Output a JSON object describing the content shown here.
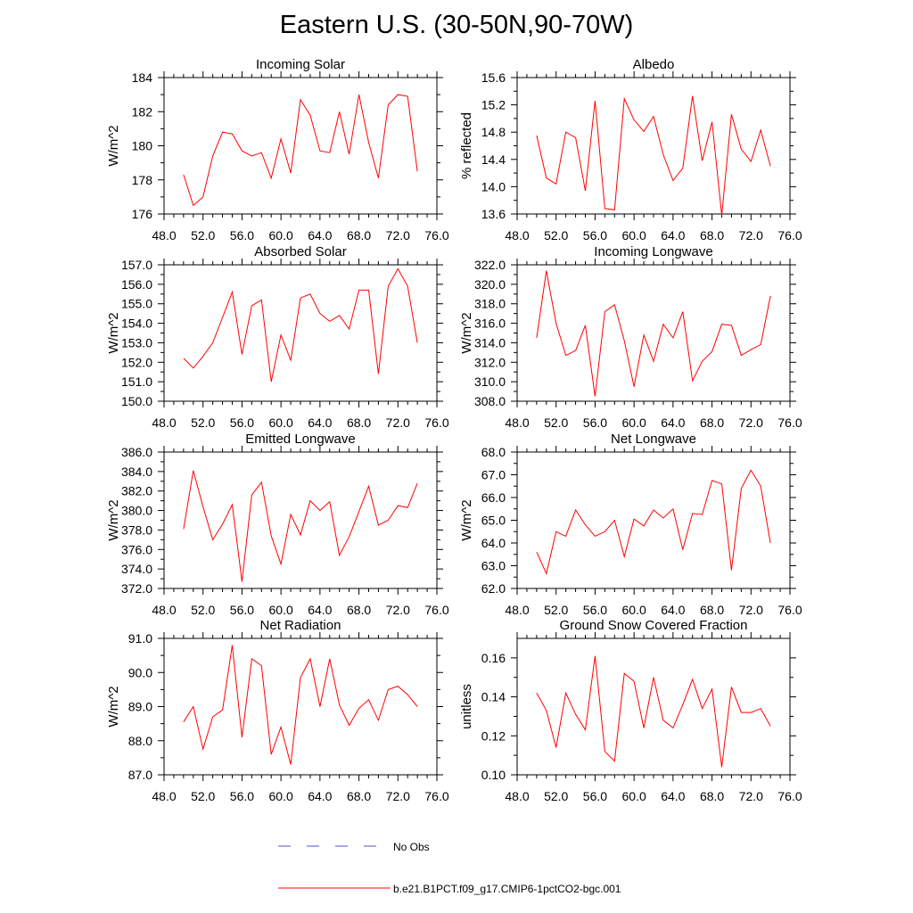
{
  "figure_title": "Eastern U.S. (30-50N,90-70W)",
  "legend": {
    "items": [
      {
        "label": "No Obs",
        "color": "#5555cc",
        "style": "dashed"
      },
      {
        "label": "b.e21.B1PCT.f09_g17.CMIP6-1pctCO2-bgc.001",
        "color": "#ff0000",
        "style": "solid"
      }
    ]
  },
  "chart_data": [
    {
      "type": "line",
      "title": "Incoming Solar",
      "xlabel": "",
      "ylabel": "W/m^2",
      "xlim": [
        48,
        76
      ],
      "ylim": [
        176,
        184
      ],
      "xticks": [
        "48.0",
        "52.0",
        "56.0",
        "60.0",
        "64.0",
        "68.0",
        "72.0",
        "76.0"
      ],
      "yticks": [
        "176",
        "178",
        "180",
        "182",
        "184"
      ],
      "x": [
        50,
        51,
        52,
        53,
        54,
        55,
        56,
        57,
        58,
        59,
        60,
        61,
        62,
        63,
        64,
        65,
        66,
        67,
        68,
        69,
        70,
        71,
        72,
        73,
        74
      ],
      "series": [
        {
          "color": "#ff0000",
          "values": [
            178.3,
            176.5,
            177.0,
            179.4,
            180.8,
            180.7,
            179.7,
            179.4,
            179.6,
            178.1,
            180.4,
            178.4,
            182.7,
            181.8,
            179.7,
            179.6,
            182.0,
            179.5,
            183.0,
            180.2,
            178.1,
            182.4,
            183.0,
            182.9,
            178.5
          ]
        }
      ]
    },
    {
      "type": "line",
      "title": "Albedo",
      "xlabel": "",
      "ylabel": "% reflected",
      "xlim": [
        48,
        76
      ],
      "ylim": [
        13.6,
        15.6
      ],
      "xticks": [
        "48.0",
        "52.0",
        "56.0",
        "60.0",
        "64.0",
        "68.0",
        "72.0",
        "76.0"
      ],
      "yticks": [
        "13.6",
        "14.0",
        "14.4",
        "14.8",
        "15.2",
        "15.6"
      ],
      "x": [
        50,
        51,
        52,
        53,
        54,
        55,
        56,
        57,
        58,
        59,
        60,
        61,
        62,
        63,
        64,
        65,
        66,
        67,
        68,
        69,
        70,
        71,
        72,
        73,
        74
      ],
      "series": [
        {
          "color": "#ff0000",
          "values": [
            14.75,
            14.13,
            14.04,
            14.8,
            14.72,
            13.94,
            15.26,
            13.68,
            13.66,
            15.29,
            14.98,
            14.81,
            15.03,
            14.47,
            14.09,
            14.27,
            15.33,
            14.38,
            14.95,
            13.58,
            15.06,
            14.55,
            14.37,
            14.83,
            14.3
          ]
        }
      ]
    },
    {
      "type": "line",
      "title": "Absorbed Solar",
      "xlabel": "",
      "ylabel": "W/m^2",
      "xlim": [
        48,
        76
      ],
      "ylim": [
        150,
        157
      ],
      "xticks": [
        "48.0",
        "52.0",
        "56.0",
        "60.0",
        "64.0",
        "68.0",
        "72.0",
        "76.0"
      ],
      "yticks": [
        "150.0",
        "151.0",
        "152.0",
        "153.0",
        "154.0",
        "155.0",
        "156.0",
        "157.0"
      ],
      "x": [
        50,
        51,
        52,
        53,
        54,
        55,
        56,
        57,
        58,
        59,
        60,
        61,
        62,
        63,
        64,
        65,
        66,
        67,
        68,
        69,
        70,
        71,
        72,
        73,
        74
      ],
      "series": [
        {
          "color": "#ff0000",
          "values": [
            152.2,
            151.7,
            152.3,
            153.0,
            154.3,
            155.6,
            152.4,
            154.9,
            155.2,
            151.0,
            153.4,
            152.1,
            155.3,
            155.5,
            154.5,
            154.1,
            154.4,
            153.7,
            155.7,
            155.7,
            151.4,
            155.9,
            156.8,
            155.9,
            153.0
          ]
        }
      ]
    },
    {
      "type": "line",
      "title": "Incoming Longwave",
      "xlabel": "",
      "ylabel": "W/m^2",
      "xlim": [
        48,
        76
      ],
      "ylim": [
        308,
        322
      ],
      "xticks": [
        "48.0",
        "52.0",
        "56.0",
        "60.0",
        "64.0",
        "68.0",
        "72.0",
        "76.0"
      ],
      "yticks": [
        "308.0",
        "310.0",
        "312.0",
        "314.0",
        "316.0",
        "318.0",
        "320.0",
        "322.0"
      ],
      "x": [
        50,
        51,
        52,
        53,
        54,
        55,
        56,
        57,
        58,
        59,
        60,
        61,
        62,
        63,
        64,
        65,
        66,
        67,
        68,
        69,
        70,
        71,
        72,
        73,
        74
      ],
      "series": [
        {
          "color": "#ff0000",
          "values": [
            314.5,
            321.4,
            316.0,
            312.7,
            313.2,
            315.8,
            308.5,
            317.2,
            317.9,
            314.2,
            309.5,
            314.8,
            312.1,
            315.9,
            314.5,
            317.2,
            310.1,
            312.1,
            313.1,
            315.9,
            315.8,
            312.7,
            313.3,
            313.8,
            318.8
          ]
        }
      ]
    },
    {
      "type": "line",
      "title": "Emitted Longwave",
      "xlabel": "",
      "ylabel": "W/m^2",
      "xlim": [
        48,
        76
      ],
      "ylim": [
        372,
        386
      ],
      "xticks": [
        "48.0",
        "52.0",
        "56.0",
        "60.0",
        "64.0",
        "68.0",
        "72.0",
        "76.0"
      ],
      "yticks": [
        "372.0",
        "374.0",
        "376.0",
        "378.0",
        "380.0",
        "382.0",
        "384.0",
        "386.0"
      ],
      "x": [
        50,
        51,
        52,
        53,
        54,
        55,
        56,
        57,
        58,
        59,
        60,
        61,
        62,
        63,
        64,
        65,
        66,
        67,
        68,
        69,
        70,
        71,
        72,
        73,
        74
      ],
      "series": [
        {
          "color": "#ff0000",
          "values": [
            378.1,
            384.1,
            380.4,
            377.0,
            378.6,
            380.6,
            372.7,
            381.6,
            382.9,
            377.4,
            374.5,
            379.6,
            377.5,
            381.0,
            380.0,
            380.9,
            375.4,
            377.3,
            379.9,
            382.5,
            378.5,
            379.0,
            380.5,
            380.3,
            382.8
          ]
        }
      ]
    },
    {
      "type": "line",
      "title": "Net Longwave",
      "xlabel": "",
      "ylabel": "W/m^2",
      "xlim": [
        48,
        76
      ],
      "ylim": [
        62,
        68
      ],
      "xticks": [
        "48.0",
        "52.0",
        "56.0",
        "60.0",
        "64.0",
        "68.0",
        "72.0",
        "76.0"
      ],
      "yticks": [
        "62.0",
        "63.0",
        "64.0",
        "65.0",
        "66.0",
        "67.0",
        "68.0"
      ],
      "x": [
        50,
        51,
        52,
        53,
        54,
        55,
        56,
        57,
        58,
        59,
        60,
        61,
        62,
        63,
        64,
        65,
        66,
        67,
        68,
        69,
        70,
        71,
        72,
        73,
        74
      ],
      "series": [
        {
          "color": "#ff0000",
          "values": [
            63.6,
            62.65,
            64.5,
            64.3,
            65.45,
            64.8,
            64.3,
            64.5,
            65.0,
            63.4,
            65.05,
            64.75,
            65.45,
            65.1,
            65.5,
            63.7,
            65.3,
            65.25,
            66.75,
            66.6,
            62.8,
            66.4,
            67.2,
            66.5,
            64.0
          ]
        }
      ]
    },
    {
      "type": "line",
      "title": "Net Radiation",
      "xlabel": "",
      "ylabel": "W/m^2",
      "xlim": [
        48,
        76
      ],
      "ylim": [
        87,
        91
      ],
      "xticks": [
        "48.0",
        "52.0",
        "56.0",
        "60.0",
        "64.0",
        "68.0",
        "72.0",
        "76.0"
      ],
      "yticks": [
        "87.0",
        "88.0",
        "89.0",
        "90.0",
        "91.0"
      ],
      "x": [
        50,
        51,
        52,
        53,
        54,
        55,
        56,
        57,
        58,
        59,
        60,
        61,
        62,
        63,
        64,
        65,
        66,
        67,
        68,
        69,
        70,
        71,
        72,
        73,
        74
      ],
      "series": [
        {
          "color": "#ff0000",
          "values": [
            88.55,
            89.0,
            87.75,
            88.7,
            88.9,
            90.8,
            88.1,
            90.4,
            90.2,
            87.6,
            88.4,
            87.3,
            89.85,
            90.4,
            89.0,
            90.4,
            89.05,
            88.45,
            88.95,
            89.2,
            88.6,
            89.5,
            89.6,
            89.35,
            89.0
          ]
        }
      ]
    },
    {
      "type": "line",
      "title": "Ground Snow Covered Fraction",
      "xlabel": "",
      "ylabel": "unitless",
      "xlim": [
        48,
        76
      ],
      "ylim": [
        0.1,
        0.17
      ],
      "xticks": [
        "48.0",
        "52.0",
        "56.0",
        "60.0",
        "64.0",
        "68.0",
        "72.0",
        "76.0"
      ],
      "yticks": [
        "0.10",
        "0.12",
        "0.14",
        "0.16"
      ],
      "x": [
        50,
        51,
        52,
        53,
        54,
        55,
        56,
        57,
        58,
        59,
        60,
        61,
        62,
        63,
        64,
        65,
        66,
        67,
        68,
        69,
        70,
        71,
        72,
        73,
        74
      ],
      "series": [
        {
          "color": "#ff0000",
          "values": [
            0.142,
            0.133,
            0.114,
            0.142,
            0.131,
            0.123,
            0.161,
            0.112,
            0.107,
            0.152,
            0.148,
            0.124,
            0.15,
            0.128,
            0.124,
            0.136,
            0.149,
            0.134,
            0.144,
            0.104,
            0.145,
            0.132,
            0.132,
            0.134,
            0.125
          ]
        }
      ]
    }
  ]
}
